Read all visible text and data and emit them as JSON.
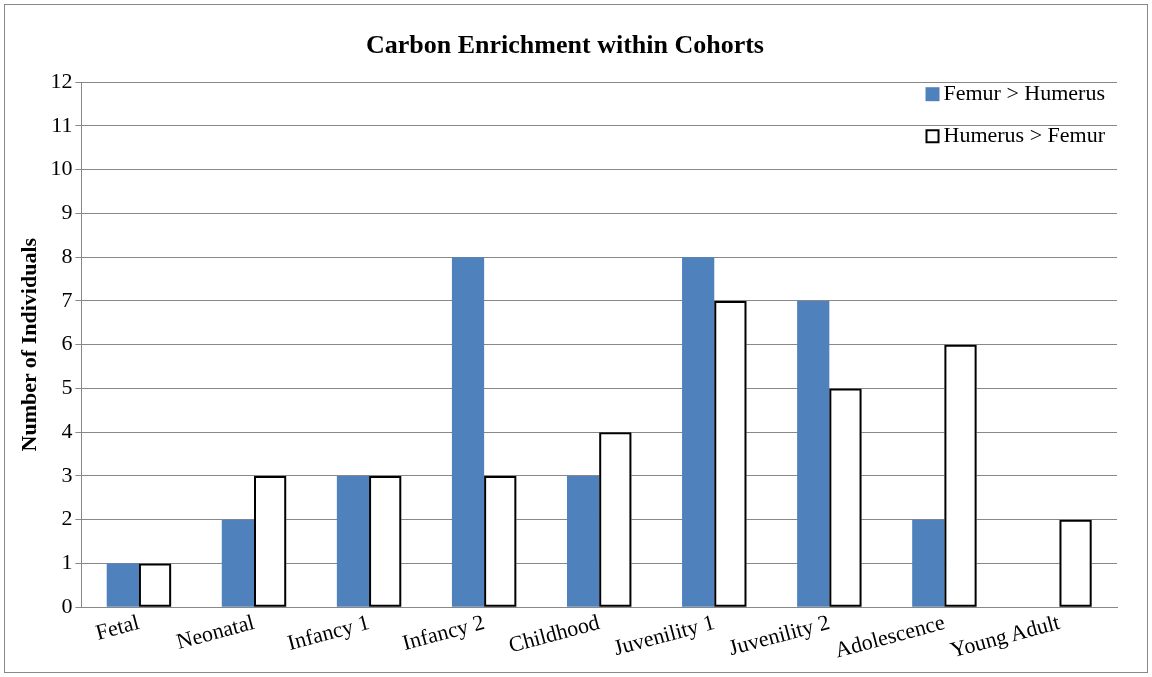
{
  "chart_data": {
    "type": "bar",
    "title": "Carbon Enrichment within Cohorts",
    "ylabel": "Number of Individuals",
    "categories": [
      "Fetal",
      "Neonatal",
      "Infancy 1",
      "Infancy 2",
      "Childhood",
      "Juvenility 1",
      "Juvenility 2",
      "Adolescence",
      "Young Adult"
    ],
    "series": [
      {
        "name": "Femur > Humerus",
        "color": "#4f81bd",
        "values": [
          1,
          2,
          3,
          8,
          3,
          8,
          7,
          2,
          0
        ]
      },
      {
        "name": "Humerus > Femur",
        "color": "#000000",
        "values": [
          1,
          3,
          3,
          3,
          4,
          7,
          5,
          6,
          2
        ]
      }
    ],
    "ylim": [
      0,
      12
    ],
    "yticks": [
      0,
      1,
      2,
      3,
      4,
      5,
      6,
      7,
      8,
      9,
      10,
      11,
      12
    ],
    "grid": "y",
    "legend": "top right"
  }
}
